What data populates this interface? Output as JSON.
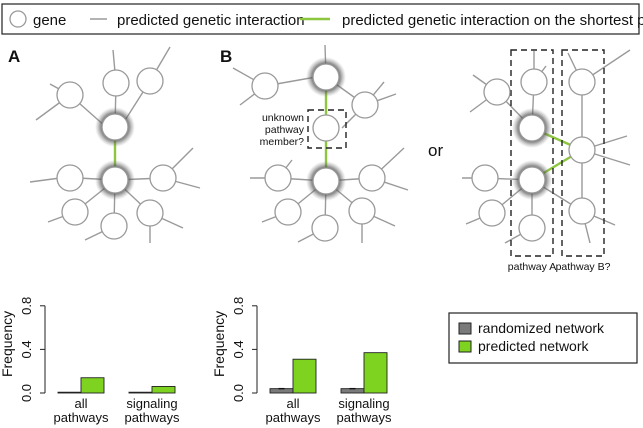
{
  "legend": {
    "gene": "gene",
    "predicted_interaction": "predicted genetic interaction",
    "shortest_path_interaction": "predicted genetic interaction on the shortest path"
  },
  "panels": {
    "a_label": "A",
    "b_label": "B",
    "unknown_member": [
      "unknown",
      "pathway",
      "member?"
    ],
    "or_text": "or",
    "pathway_a": "pathway A",
    "pathway_b": "pathway B?"
  },
  "colors": {
    "shortest_path": "#8dc63f",
    "interaction": "#9a9a9a",
    "randomized_bar": "#7a7a7a",
    "predicted_bar": "#7ed321"
  },
  "chart_legend": {
    "randomized": "randomized network",
    "predicted": "predicted network"
  },
  "chart_data": [
    {
      "type": "bar",
      "ylabel": "Frequency",
      "yticks": [
        "0.0",
        "0.4",
        "0.8"
      ],
      "ylim": [
        0,
        1.0
      ],
      "categories": [
        [
          "all",
          "pathways"
        ],
        [
          "signaling",
          "pathways"
        ]
      ],
      "series": [
        {
          "name": "randomized network",
          "values": [
            0.0,
            0.0
          ],
          "color": "#7a7a7a"
        },
        {
          "name": "predicted network",
          "values": [
            0.14,
            0.06
          ],
          "color": "#7ed321"
        }
      ]
    },
    {
      "type": "bar",
      "ylabel": "Frequency",
      "yticks": [
        "0.0",
        "0.4",
        "0.8"
      ],
      "ylim": [
        0,
        1.0
      ],
      "categories": [
        [
          "all",
          "pathways"
        ],
        [
          "signaling",
          "pathways"
        ]
      ],
      "series": [
        {
          "name": "randomized network",
          "values": [
            0.04,
            0.04
          ],
          "color": "#7a7a7a"
        },
        {
          "name": "predicted network",
          "values": [
            0.31,
            0.37
          ],
          "color": "#7ed321"
        }
      ]
    }
  ]
}
